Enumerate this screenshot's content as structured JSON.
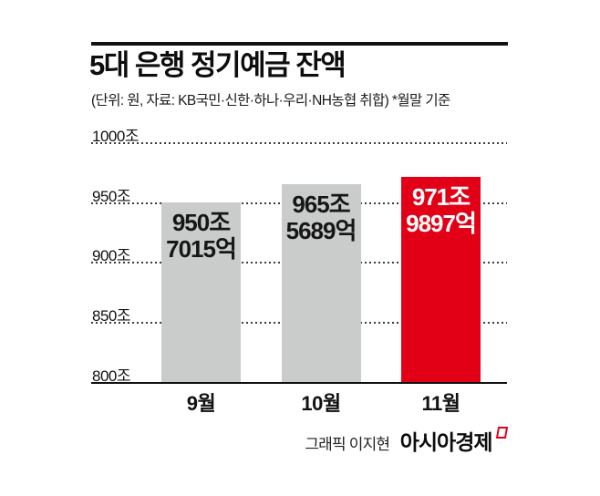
{
  "header": {
    "title": "5대 은행 정기예금 잔액",
    "subtitle": "(단위: 원, 자료: KB국민·신한·하나·우리·NH농협 취합)  *월말 기준"
  },
  "chart_data": {
    "type": "bar",
    "title": "5대 은행 정기예금 잔액",
    "unit_note": "(단위: 원, 자료: KB국민·신한·하나·우리·NH농협 취합) *월말 기준",
    "categories": [
      "9월",
      "10월",
      "11월"
    ],
    "values": [
      950.7015,
      965.5689,
      971.9897
    ],
    "value_labels": [
      [
        "950조",
        "7015억"
      ],
      [
        "965조",
        "5689억"
      ],
      [
        "971조",
        "9897억"
      ]
    ],
    "bar_colors": [
      "#cacbcb",
      "#cacbcb",
      "#e20017"
    ],
    "value_label_colors": [
      "#161616",
      "#161616",
      "#ffffff"
    ],
    "ylim": [
      800,
      1000
    ],
    "ytick_step": 50,
    "ytick_labels": [
      "800조",
      "850조",
      "900조",
      "950조",
      "1000조"
    ],
    "ylabel": "",
    "xlabel": "",
    "grid": "horizontal-dotted",
    "baseline": "solid-800조",
    "legend": "none"
  },
  "footer": {
    "credit_prefix": "그래픽 이지현",
    "brand": "아시아경제",
    "brand_mark_color": "#e20017"
  },
  "colors": {
    "accent_red": "#e20017",
    "bar_gray": "#cacbcb",
    "ink": "#111111",
    "background": "#ffffff"
  }
}
